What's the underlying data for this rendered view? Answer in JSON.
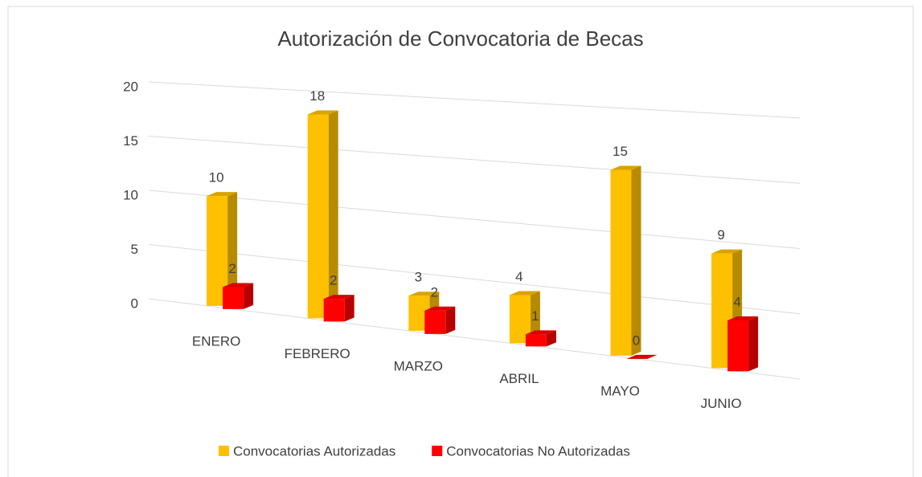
{
  "chart_data": {
    "type": "bar3d",
    "title": "Autorización de Convocatoria de Becas",
    "categories": [
      "ENERO",
      "FEBRERO",
      "MARZO",
      "ABRIL",
      "MAYO",
      "JUNIO"
    ],
    "series": [
      {
        "name": "Convocatorias Autorizadas",
        "color": "#FFC000",
        "values": [
          10,
          18,
          3,
          4,
          15,
          9
        ]
      },
      {
        "name": "Convocatorias No Autorizadas",
        "color": "#FF0000",
        "values": [
          2,
          2,
          2,
          1,
          0,
          4
        ]
      }
    ],
    "ylim": [
      0,
      20
    ],
    "yticks": [
      0,
      5,
      10,
      15,
      20
    ],
    "grid": true,
    "legend": "bottom"
  }
}
